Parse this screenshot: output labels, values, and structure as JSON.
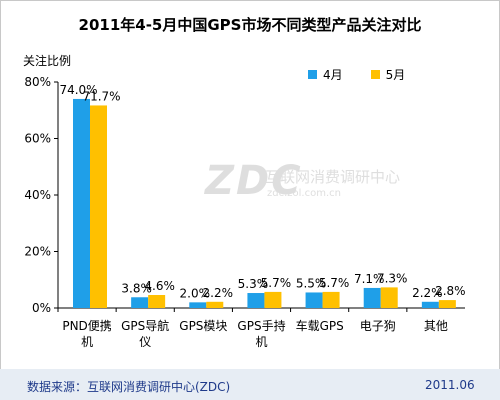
{
  "chart_data": {
    "type": "bar",
    "title": "2011年4-5月中国GPS市场不同类型产品关注对比",
    "ylabel": "关注比例",
    "xlabel": "",
    "ylim": [
      0,
      80
    ],
    "yticks": [
      "0%",
      "20%",
      "40%",
      "60%",
      "80%"
    ],
    "categories": [
      [
        "PND便携",
        "机"
      ],
      [
        "GPS导航",
        "仪"
      ],
      [
        "GPS模块"
      ],
      [
        "GPS手持",
        "机"
      ],
      [
        "车载GPS"
      ],
      [
        "电子狗"
      ],
      [
        "其他"
      ]
    ],
    "series": [
      {
        "name": "4月",
        "color": "#1f9fe8",
        "values": [
          74.0,
          3.8,
          2.0,
          5.3,
          5.5,
          7.1,
          2.2
        ],
        "labels": [
          "74.0%",
          "3.8%",
          "2.0%",
          "5.3%",
          "5.5%",
          "7.1%",
          "2.2%"
        ]
      },
      {
        "name": "5月",
        "color": "#ffc000",
        "values": [
          71.7,
          4.6,
          2.2,
          5.7,
          5.7,
          7.3,
          2.8
        ],
        "labels": [
          "71.7%",
          "4.6%",
          "2.2%",
          "5.7%",
          "5.7%",
          "7.3%",
          "2.8%"
        ]
      }
    ],
    "grid": false,
    "legend_position": "top-right"
  },
  "watermark": {
    "logo": "ZDC",
    "text": "互联网消费调研中心",
    "url": "zdc.zol.com.cn"
  },
  "footer": {
    "source": "数据来源：互联网消费调研中心(ZDC)",
    "date": "2011.06"
  }
}
